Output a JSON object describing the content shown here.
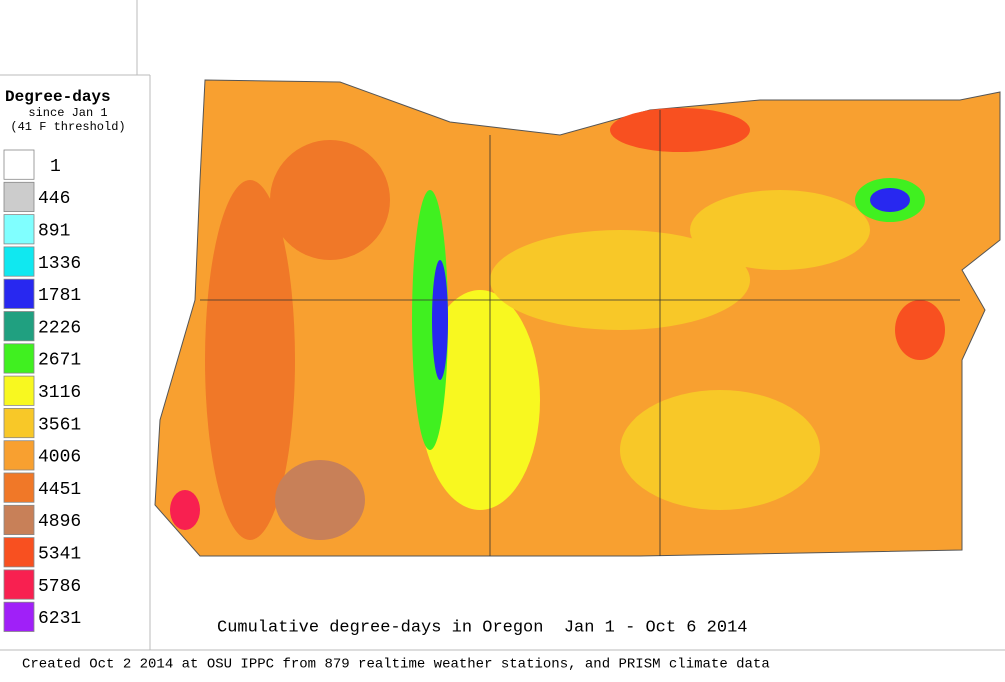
{
  "legend": {
    "title": "Degree-days",
    "subtitle": "since Jan 1",
    "note": "(41 F threshold)",
    "items": [
      {
        "label": "1",
        "color": "#ffffff"
      },
      {
        "label": "446",
        "color": "#cccccc"
      },
      {
        "label": "891",
        "color": "#80ffff"
      },
      {
        "label": "1336",
        "color": "#10e8f0"
      },
      {
        "label": "1781",
        "color": "#2828f0"
      },
      {
        "label": "2226",
        "color": "#20a080"
      },
      {
        "label": "2671",
        "color": "#40f020"
      },
      {
        "label": "3116",
        "color": "#f8f820"
      },
      {
        "label": "3561",
        "color": "#f8c828"
      },
      {
        "label": "4006",
        "color": "#f8a030"
      },
      {
        "label": "4451",
        "color": "#f07828"
      },
      {
        "label": "4896",
        "color": "#c88058"
      },
      {
        "label": "5341",
        "color": "#f85020"
      },
      {
        "label": "5786",
        "color": "#f82050"
      },
      {
        "label": "6231",
        "color": "#a020f8"
      }
    ]
  },
  "map": {
    "caption": "Cumulative degree-days in Oregon  Jan 1 - Oct 6 2014"
  },
  "footer": "Created Oct 2 2014 at OSU IPPC from 879 realtime weather stations, and PRISM climate data"
}
